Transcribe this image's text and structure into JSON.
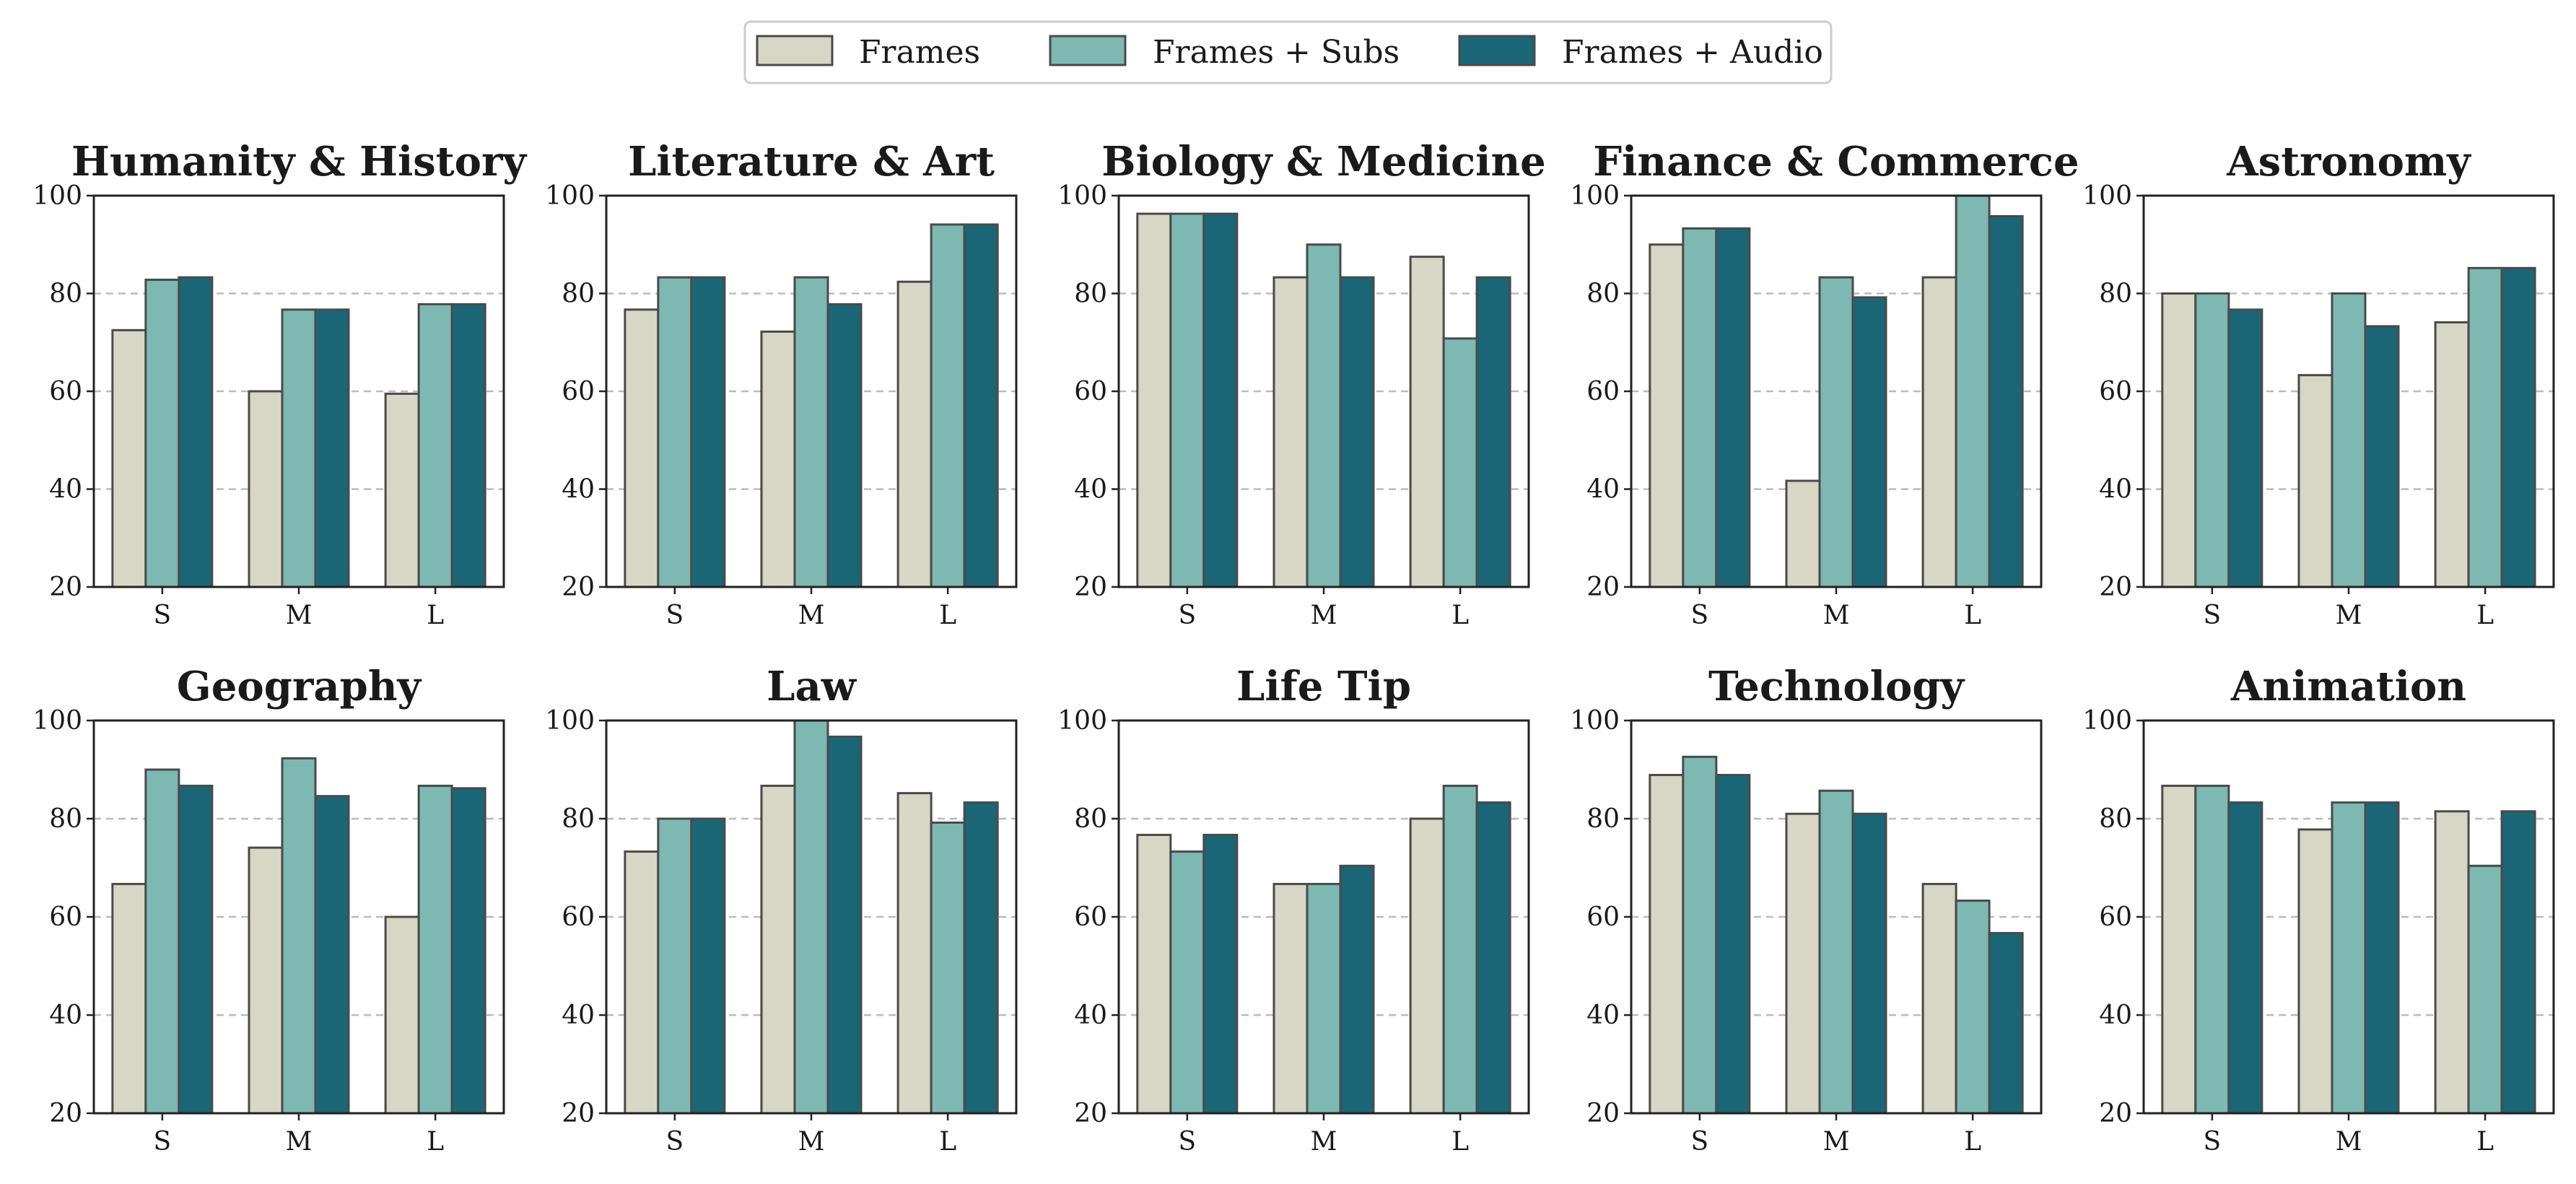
{
  "legend": {
    "entries": [
      {
        "label": "Frames",
        "color": "#d8d6c4"
      },
      {
        "label": "Frames + Subs",
        "color": "#7eb8b2"
      },
      {
        "label": "Frames + Audio",
        "color": "#1a6677"
      }
    ],
    "placement": "top-center"
  },
  "style": {
    "edge_color": "#4a4a4a",
    "grid_color": "#bbbbbb"
  },
  "chart_data": [
    {
      "type": "bar",
      "title": "Humanity & History",
      "categories": [
        "S",
        "M",
        "L"
      ],
      "ylim": [
        20,
        100
      ],
      "yticks": [
        20,
        40,
        60,
        80,
        100
      ],
      "grid": "y-dashed",
      "series": [
        {
          "name": "Frames",
          "values": [
            72.5,
            60,
            59.5
          ]
        },
        {
          "name": "Frames + Subs",
          "values": [
            82.8,
            76.7,
            77.8
          ]
        },
        {
          "name": "Frames + Audio",
          "values": [
            83.3,
            76.7,
            77.8
          ]
        }
      ]
    },
    {
      "type": "bar",
      "title": "Literature & Art",
      "categories": [
        "S",
        "M",
        "L"
      ],
      "ylim": [
        20,
        100
      ],
      "yticks": [
        20,
        40,
        60,
        80,
        100
      ],
      "grid": "y-dashed",
      "series": [
        {
          "name": "Frames",
          "values": [
            76.7,
            72.2,
            82.4
          ]
        },
        {
          "name": "Frames + Subs",
          "values": [
            83.3,
            83.3,
            94.1
          ]
        },
        {
          "name": "Frames + Audio",
          "values": [
            83.3,
            77.8,
            94.1
          ]
        }
      ]
    },
    {
      "type": "bar",
      "title": "Biology & Medicine",
      "categories": [
        "S",
        "M",
        "L"
      ],
      "ylim": [
        20,
        100
      ],
      "yticks": [
        20,
        40,
        60,
        80,
        100
      ],
      "grid": "y-dashed",
      "series": [
        {
          "name": "Frames",
          "values": [
            96.3,
            83.3,
            87.5
          ]
        },
        {
          "name": "Frames + Subs",
          "values": [
            96.3,
            90,
            70.8
          ]
        },
        {
          "name": "Frames + Audio",
          "values": [
            96.3,
            83.3,
            83.3
          ]
        }
      ]
    },
    {
      "type": "bar",
      "title": "Finance & Commerce",
      "categories": [
        "S",
        "M",
        "L"
      ],
      "ylim": [
        20,
        100
      ],
      "yticks": [
        20,
        40,
        60,
        80,
        100
      ],
      "grid": "y-dashed",
      "series": [
        {
          "name": "Frames",
          "values": [
            90,
            41.7,
            83.3
          ]
        },
        {
          "name": "Frames + Subs",
          "values": [
            93.3,
            83.3,
            100
          ]
        },
        {
          "name": "Frames + Audio",
          "values": [
            93.3,
            79.2,
            95.8
          ]
        }
      ]
    },
    {
      "type": "bar",
      "title": "Astronomy",
      "categories": [
        "S",
        "M",
        "L"
      ],
      "ylim": [
        20,
        100
      ],
      "yticks": [
        20,
        40,
        60,
        80,
        100
      ],
      "grid": "y-dashed",
      "series": [
        {
          "name": "Frames",
          "values": [
            80,
            63.3,
            74.1
          ]
        },
        {
          "name": "Frames + Subs",
          "values": [
            80,
            80,
            85.2
          ]
        },
        {
          "name": "Frames + Audio",
          "values": [
            76.7,
            73.3,
            85.2
          ]
        }
      ]
    },
    {
      "type": "bar",
      "title": "Geography",
      "categories": [
        "S",
        "M",
        "L"
      ],
      "ylim": [
        20,
        100
      ],
      "yticks": [
        20,
        40,
        60,
        80,
        100
      ],
      "grid": "y-dashed",
      "series": [
        {
          "name": "Frames",
          "values": [
            66.7,
            74.1,
            60
          ]
        },
        {
          "name": "Frames + Subs",
          "values": [
            90,
            92.3,
            86.7
          ]
        },
        {
          "name": "Frames + Audio",
          "values": [
            86.7,
            84.6,
            86.2
          ]
        }
      ]
    },
    {
      "type": "bar",
      "title": "Law",
      "categories": [
        "S",
        "M",
        "L"
      ],
      "ylim": [
        20,
        100
      ],
      "yticks": [
        20,
        40,
        60,
        80,
        100
      ],
      "grid": "y-dashed",
      "series": [
        {
          "name": "Frames",
          "values": [
            73.3,
            86.7,
            85.2
          ]
        },
        {
          "name": "Frames + Subs",
          "values": [
            80,
            100,
            79.2
          ]
        },
        {
          "name": "Frames + Audio",
          "values": [
            80,
            96.7,
            83.3
          ]
        }
      ]
    },
    {
      "type": "bar",
      "title": "Life Tip",
      "categories": [
        "S",
        "M",
        "L"
      ],
      "ylim": [
        20,
        100
      ],
      "yticks": [
        20,
        40,
        60,
        80,
        100
      ],
      "grid": "y-dashed",
      "series": [
        {
          "name": "Frames",
          "values": [
            76.7,
            66.7,
            80
          ]
        },
        {
          "name": "Frames + Subs",
          "values": [
            73.3,
            66.7,
            86.7
          ]
        },
        {
          "name": "Frames + Audio",
          "values": [
            76.7,
            70.4,
            83.3
          ]
        }
      ]
    },
    {
      "type": "bar",
      "title": "Technology",
      "categories": [
        "S",
        "M",
        "L"
      ],
      "ylim": [
        20,
        100
      ],
      "yticks": [
        20,
        40,
        60,
        80,
        100
      ],
      "grid": "y-dashed",
      "series": [
        {
          "name": "Frames",
          "values": [
            88.9,
            81,
            66.7
          ]
        },
        {
          "name": "Frames + Subs",
          "values": [
            92.6,
            85.7,
            63.3
          ]
        },
        {
          "name": "Frames + Audio",
          "values": [
            88.9,
            81,
            56.7
          ]
        }
      ]
    },
    {
      "type": "bar",
      "title": "Animation",
      "categories": [
        "S",
        "M",
        "L"
      ],
      "ylim": [
        20,
        100
      ],
      "yticks": [
        20,
        40,
        60,
        80,
        100
      ],
      "grid": "y-dashed",
      "series": [
        {
          "name": "Frames",
          "values": [
            86.7,
            77.8,
            81.5
          ]
        },
        {
          "name": "Frames + Subs",
          "values": [
            86.7,
            83.3,
            70.4
          ]
        },
        {
          "name": "Frames + Audio",
          "values": [
            83.3,
            83.3,
            81.5
          ]
        }
      ]
    }
  ]
}
